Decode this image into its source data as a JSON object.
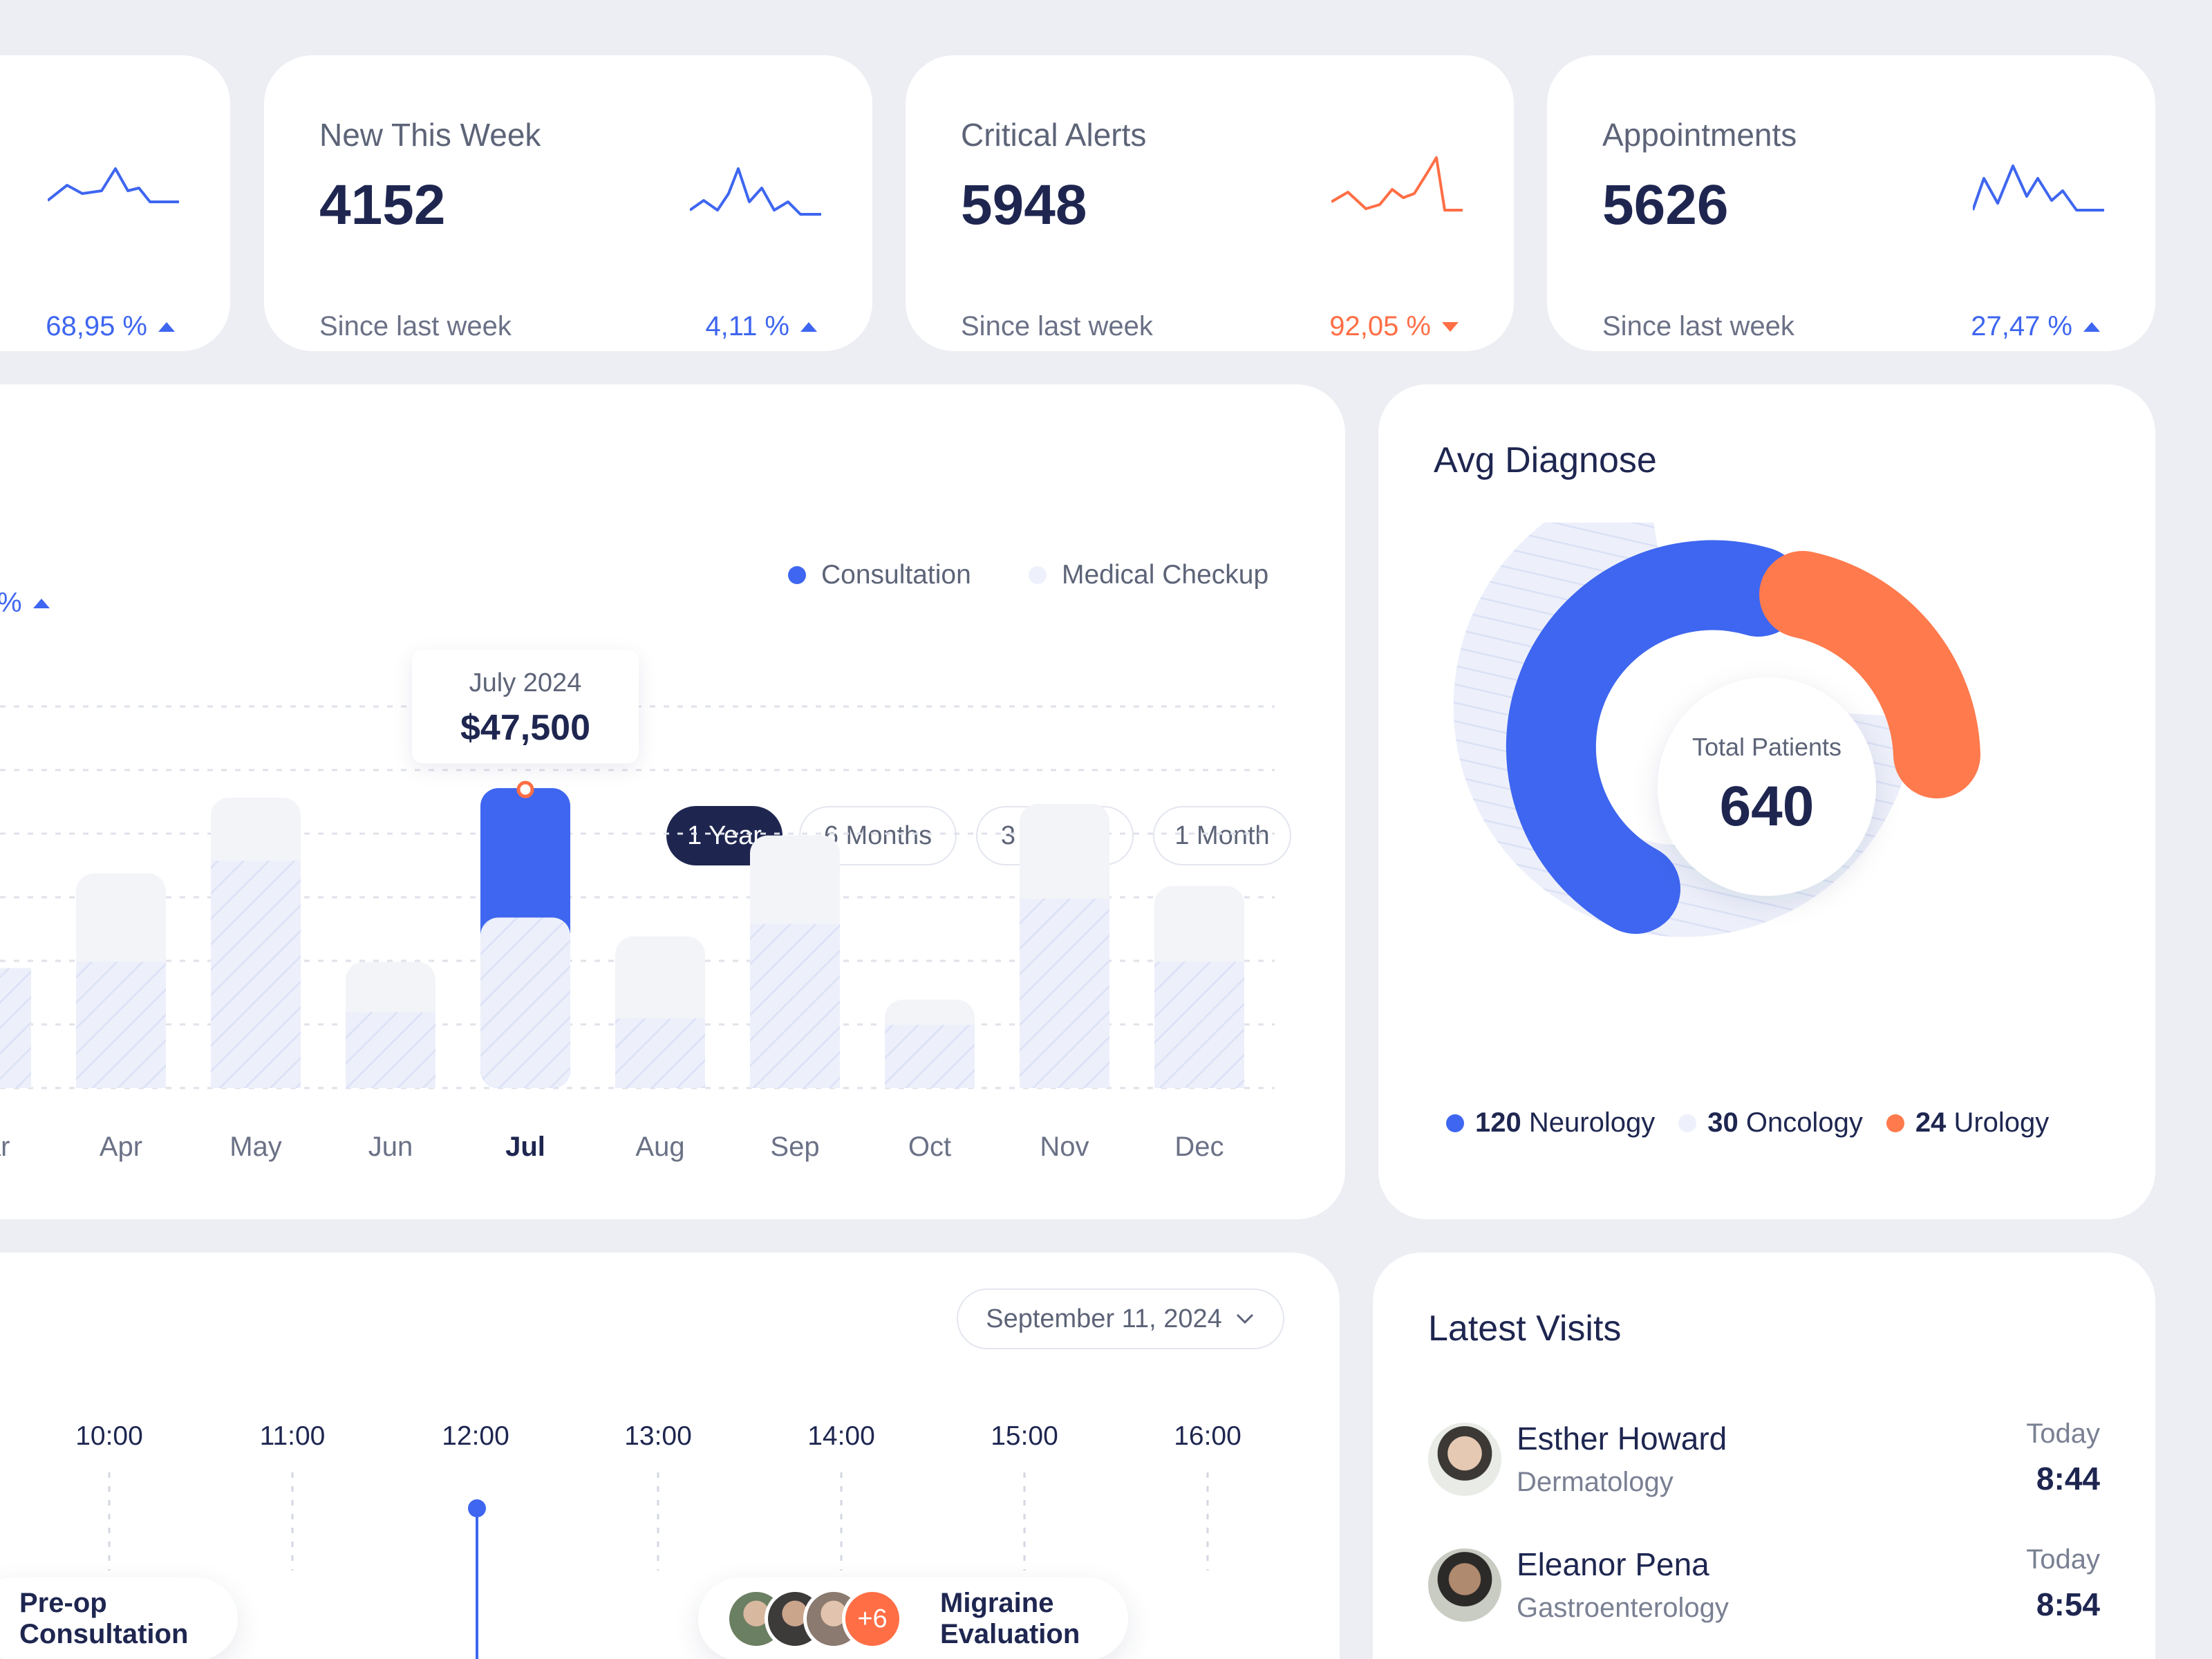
{
  "stats": [
    {
      "title": "",
      "value": "",
      "sub": "",
      "change": "68,95 %",
      "trend": "up",
      "color": "#3e66f0"
    },
    {
      "title": "New This Week",
      "value": "4152",
      "sub": "Since last week",
      "change": "4,11 %",
      "trend": "up",
      "color": "#3e66f0"
    },
    {
      "title": "Critical Alerts",
      "value": "5948",
      "sub": "Since last week",
      "change": "92,05 %",
      "trend": "down",
      "color": "#ff6e45"
    },
    {
      "title": "Appointments",
      "value": "5626",
      "sub": "Since last week",
      "change": "27,47 %",
      "trend": "up",
      "color": "#3e66f0"
    }
  ],
  "revenue": {
    "periods": [
      "1 Year",
      "6 Months",
      "3 Months",
      "1 Month"
    ],
    "active_period": "1 Year",
    "change_fragment": "%",
    "legend": [
      {
        "label": "Consultation",
        "color": "#3e66f0"
      },
      {
        "label": "Medical Checkup",
        "color": "#eef1fb"
      }
    ],
    "tooltip": {
      "label": "July 2024",
      "value": "$47,500"
    }
  },
  "chart_data": {
    "type": "bar",
    "categories": [
      "Mar",
      "Apr",
      "May",
      "Jun",
      "Jul",
      "Aug",
      "Sep",
      "Oct",
      "Nov",
      "Dec"
    ],
    "highlighted": "Jul",
    "series": [
      {
        "name": "Consultation",
        "values": [
          19,
          34,
          46,
          20,
          47.5,
          24,
          40,
          14,
          45,
          32
        ]
      },
      {
        "name": "Medical Checkup",
        "values": [
          19,
          20,
          36,
          12,
          27,
          11,
          26,
          10,
          30,
          20
        ]
      }
    ],
    "ylim": [
      0,
      60
    ],
    "grid": true,
    "legend_position": "top-right"
  },
  "avg_diagnose": {
    "title": "Avg Diagnose",
    "center_label": "Total Patients",
    "center_value": "640",
    "legend": [
      {
        "count": "120",
        "label": "Neurology",
        "color": "#3e66f0"
      },
      {
        "count": "30",
        "label": "Oncology",
        "color": "#eef1fb"
      },
      {
        "count": "24",
        "label": "Urology",
        "color": "#ff7a4d"
      }
    ]
  },
  "schedule": {
    "date": "September 11, 2024",
    "hours": [
      "10:00",
      "11:00",
      "12:00",
      "13:00",
      "14:00",
      "15:00",
      "16:00"
    ],
    "events": [
      {
        "label": "Pre-op Consultation"
      },
      {
        "label": "Migraine Evaluation",
        "extra_count": "+6"
      }
    ]
  },
  "latest_visits": {
    "title": "Latest Visits",
    "items": [
      {
        "name": "Esther Howard",
        "dept": "Dermatology",
        "day": "Today",
        "time": "8:44"
      },
      {
        "name": "Eleanor Pena",
        "dept": "Gastroenterology",
        "day": "Today",
        "time": "8:54"
      }
    ]
  }
}
